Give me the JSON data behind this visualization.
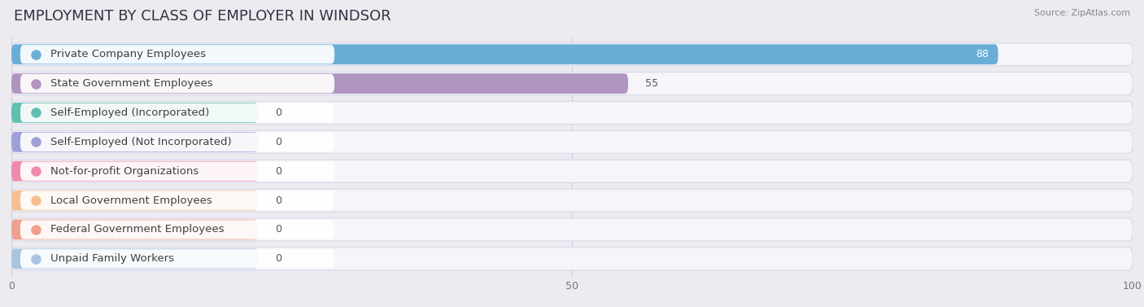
{
  "title": "EMPLOYMENT BY CLASS OF EMPLOYER IN WINDSOR",
  "source": "Source: ZipAtlas.com",
  "categories": [
    "Private Company Employees",
    "State Government Employees",
    "Self-Employed (Incorporated)",
    "Self-Employed (Not Incorporated)",
    "Not-for-profit Organizations",
    "Local Government Employees",
    "Federal Government Employees",
    "Unpaid Family Workers"
  ],
  "values": [
    88,
    55,
    0,
    0,
    0,
    0,
    0,
    0
  ],
  "bar_colors": [
    "#6aaed6",
    "#b094c0",
    "#5fbfb0",
    "#a0a0d8",
    "#f08aaa",
    "#f5c090",
    "#f0a090",
    "#a8c4e0"
  ],
  "xlim": [
    0,
    100
  ],
  "xticks": [
    0,
    50,
    100
  ],
  "background_color": "#ebebf0",
  "row_bg_color": "#f2f2f7",
  "title_fontsize": 13,
  "label_fontsize": 9.5,
  "value_fontsize": 9
}
